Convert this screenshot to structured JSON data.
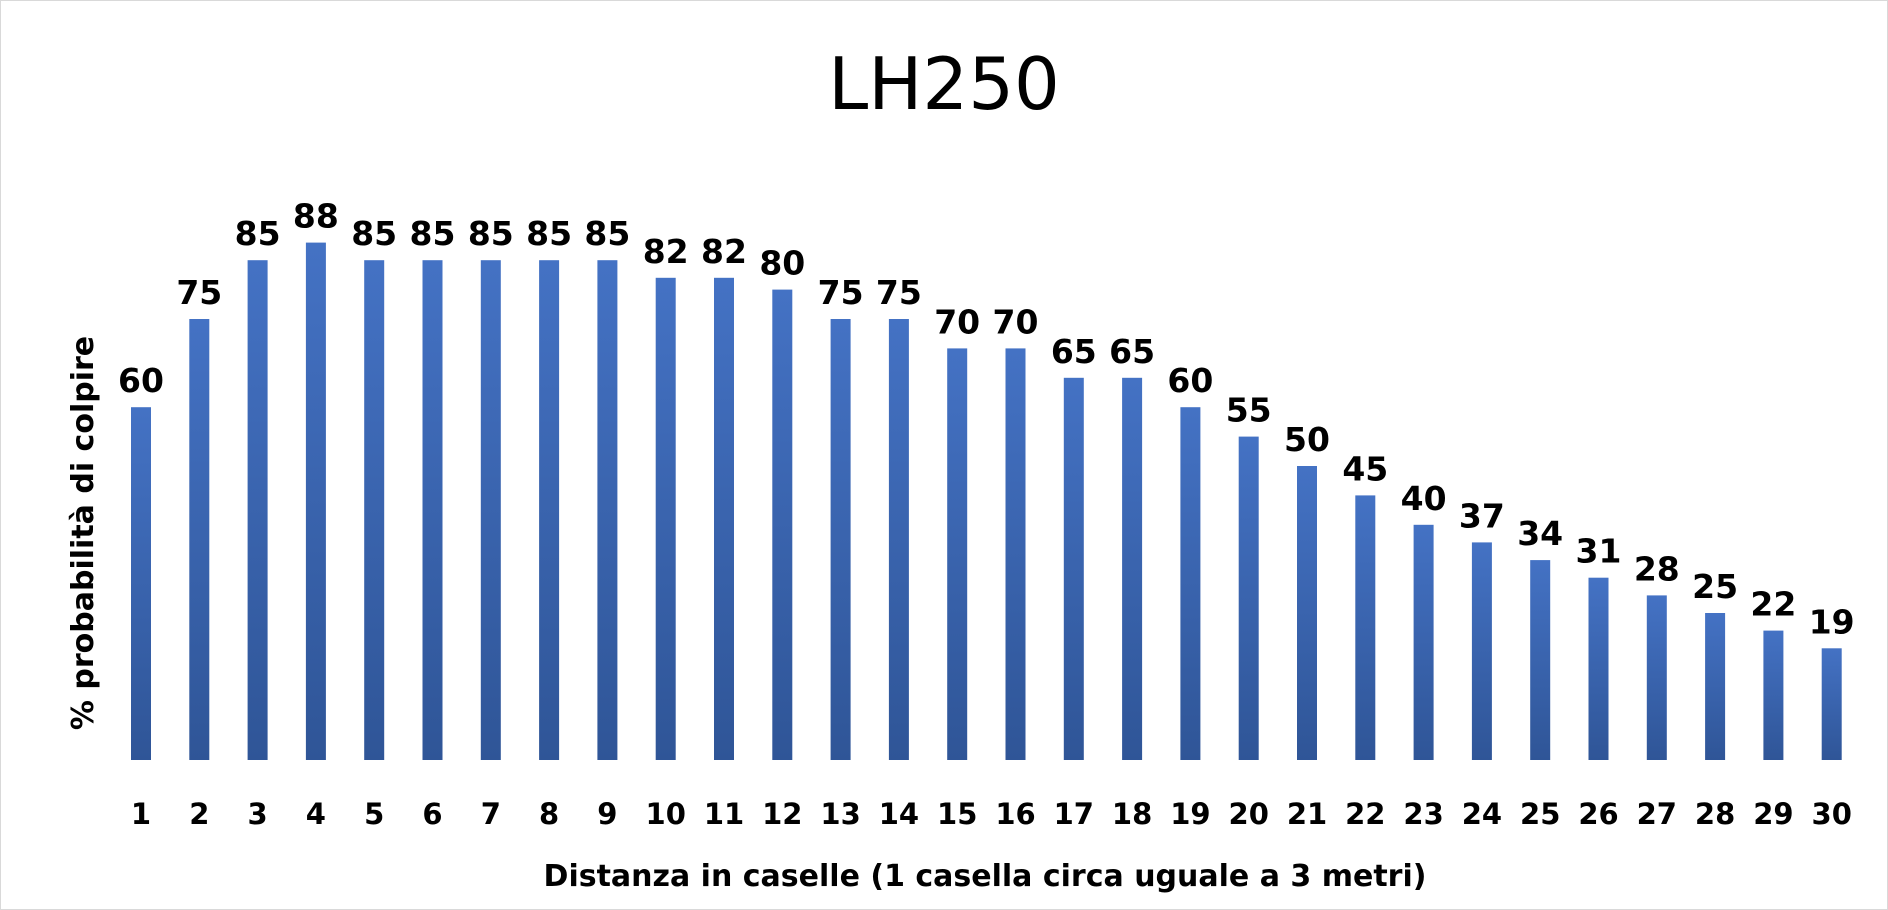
{
  "chart_data": {
    "type": "bar",
    "title": "LH250",
    "xlabel": "Distanza in caselle (1 casella circa uguale a 3 metri)",
    "ylabel": "% probabilità di colpire",
    "categories": [
      "1",
      "2",
      "3",
      "4",
      "5",
      "6",
      "7",
      "8",
      "9",
      "10",
      "11",
      "12",
      "13",
      "14",
      "15",
      "16",
      "17",
      "18",
      "19",
      "20",
      "21",
      "22",
      "23",
      "24",
      "25",
      "26",
      "27",
      "28",
      "29",
      "30"
    ],
    "values": [
      60,
      75,
      85,
      88,
      85,
      85,
      85,
      85,
      85,
      82,
      82,
      80,
      75,
      75,
      70,
      70,
      65,
      65,
      60,
      55,
      50,
      45,
      40,
      37,
      34,
      31,
      28,
      25,
      22,
      19
    ],
    "ylim": [
      0,
      100
    ],
    "grid": false,
    "legend": "none",
    "bar_color": "#4472c4",
    "bar_color_bottom": "#2f5597"
  }
}
